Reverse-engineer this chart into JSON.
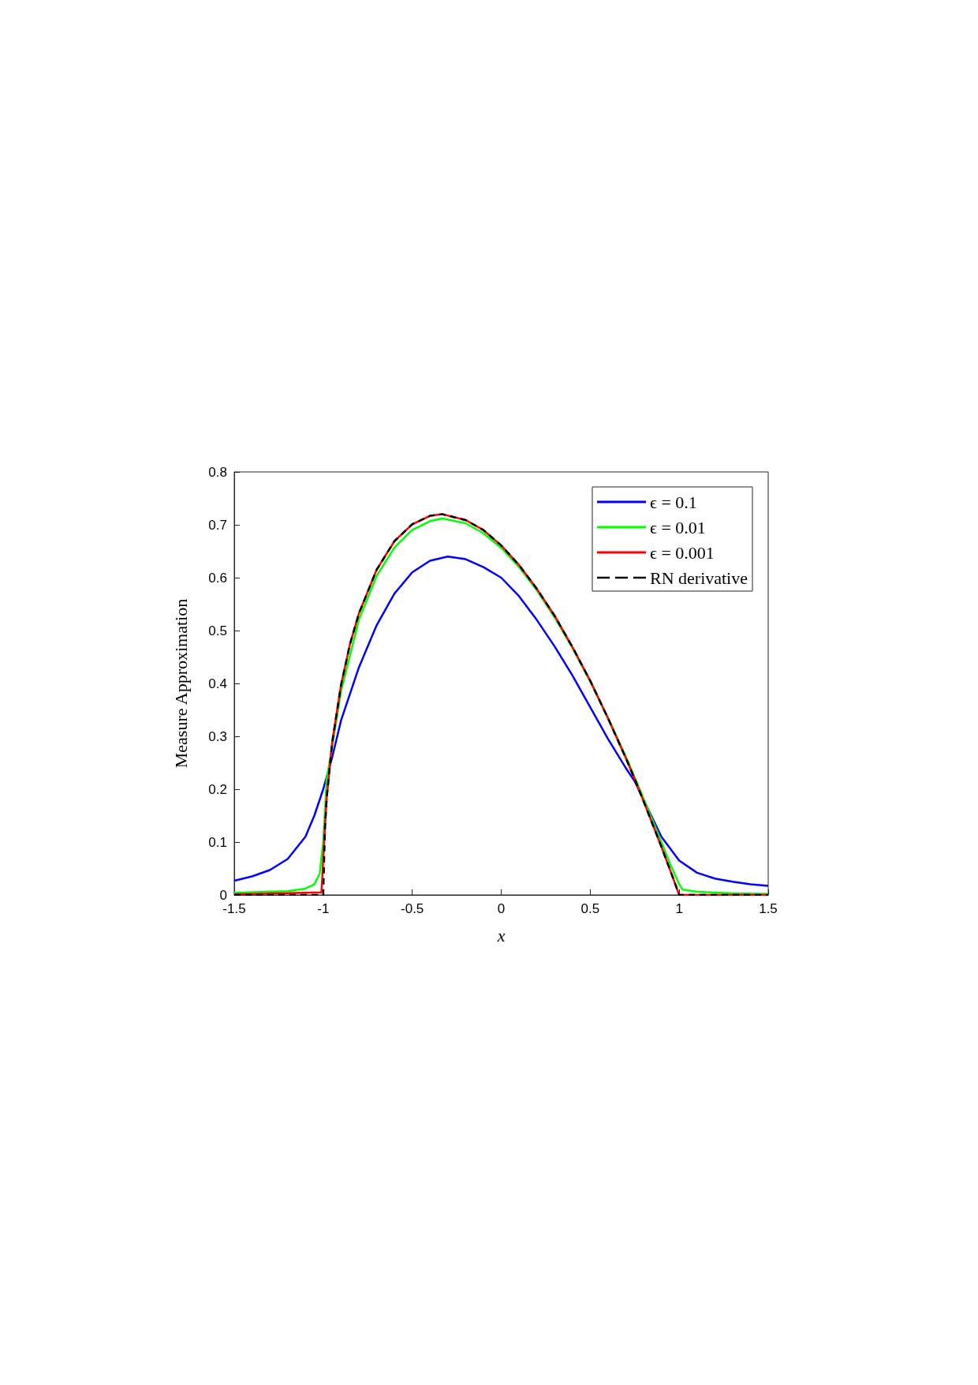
{
  "chart_data": {
    "type": "line",
    "xlabel": "x",
    "ylabel": "Measure Approximation",
    "xlim": [
      -1.5,
      1.5
    ],
    "ylim": [
      0,
      0.8
    ],
    "xticks": [
      -1.5,
      -1,
      -0.5,
      0,
      0.5,
      1,
      1.5
    ],
    "yticks": [
      0,
      0.1,
      0.2,
      0.3,
      0.4,
      0.5,
      0.6,
      0.7,
      0.8
    ],
    "grid": false,
    "legend": "top right",
    "marker": "none",
    "series": [
      {
        "name": "ϵ = 0.1",
        "color": "#0000ff",
        "x": [
          -1.5,
          -1.4,
          -1.3,
          -1.2,
          -1.1,
          -1.05,
          -1.0,
          -0.95,
          -0.9,
          -0.8,
          -0.7,
          -0.6,
          -0.5,
          -0.4,
          -0.3,
          -0.2,
          -0.1,
          0,
          0.1,
          0.2,
          0.3,
          0.4,
          0.5,
          0.6,
          0.7,
          0.75,
          0.9,
          1.0,
          1.1,
          1.2,
          1.3,
          1.4,
          1.5
        ],
        "values": [
          0.027,
          0.035,
          0.047,
          0.068,
          0.11,
          0.15,
          0.2,
          0.26,
          0.33,
          0.43,
          0.51,
          0.57,
          0.61,
          0.632,
          0.64,
          0.635,
          0.62,
          0.6,
          0.565,
          0.52,
          0.47,
          0.415,
          0.355,
          0.295,
          0.24,
          0.215,
          0.11,
          0.065,
          0.042,
          0.031,
          0.025,
          0.02,
          0.017
        ]
      },
      {
        "name": "ϵ = 0.01",
        "color": "#00ff00",
        "x": [
          -1.5,
          -1.2,
          -1.1,
          -1.05,
          -1.02,
          -1.0,
          -0.98,
          -0.95,
          -0.9,
          -0.8,
          -0.7,
          -0.6,
          -0.5,
          -0.4,
          -0.33,
          -0.2,
          -0.1,
          0,
          0.1,
          0.2,
          0.3,
          0.4,
          0.5,
          0.6,
          0.7,
          0.75,
          0.8,
          0.9,
          0.95,
          1.0,
          1.02,
          1.1,
          1.3,
          1.5
        ],
        "values": [
          0.004,
          0.007,
          0.012,
          0.02,
          0.04,
          0.1,
          0.22,
          0.28,
          0.385,
          0.52,
          0.603,
          0.657,
          0.69,
          0.707,
          0.712,
          0.703,
          0.684,
          0.656,
          0.62,
          0.576,
          0.525,
          0.467,
          0.404,
          0.335,
          0.262,
          0.222,
          0.182,
          0.1,
          0.058,
          0.02,
          0.01,
          0.006,
          0.003,
          0.002
        ]
      },
      {
        "name": "ϵ = 0.001",
        "color": "#ff0000",
        "x": [
          -1.5,
          -1.01,
          -0.99,
          -0.98,
          -0.95,
          -0.9,
          -0.85,
          -0.8,
          -0.7,
          -0.6,
          -0.5,
          -0.4,
          -0.33,
          -0.2,
          -0.1,
          0,
          0.1,
          0.2,
          0.3,
          0.4,
          0.5,
          0.6,
          0.7,
          0.75,
          0.8,
          0.9,
          0.95,
          1.0,
          1.5
        ],
        "values": [
          0.001,
          0.005,
          0.13,
          0.185,
          0.288,
          0.397,
          0.474,
          0.532,
          0.615,
          0.669,
          0.701,
          0.717,
          0.72,
          0.709,
          0.69,
          0.661,
          0.624,
          0.579,
          0.528,
          0.469,
          0.405,
          0.334,
          0.259,
          0.219,
          0.177,
          0.091,
          0.046,
          0,
          0
        ]
      },
      {
        "name": "RN derivative",
        "color": "#000000",
        "line_style": "dashed",
        "x": [
          -1.5,
          -1.0,
          -0.99,
          -0.98,
          -0.95,
          -0.9,
          -0.85,
          -0.8,
          -0.7,
          -0.6,
          -0.5,
          -0.4,
          -0.33,
          -0.2,
          -0.1,
          0,
          0.1,
          0.2,
          0.3,
          0.4,
          0.5,
          0.6,
          0.7,
          0.75,
          0.8,
          0.9,
          0.95,
          1.0,
          1.5
        ],
        "values": [
          0,
          0,
          0.13,
          0.185,
          0.288,
          0.397,
          0.474,
          0.532,
          0.615,
          0.669,
          0.701,
          0.717,
          0.72,
          0.709,
          0.69,
          0.661,
          0.624,
          0.579,
          0.528,
          0.469,
          0.405,
          0.334,
          0.259,
          0.219,
          0.177,
          0.091,
          0.046,
          0,
          0
        ]
      }
    ]
  }
}
